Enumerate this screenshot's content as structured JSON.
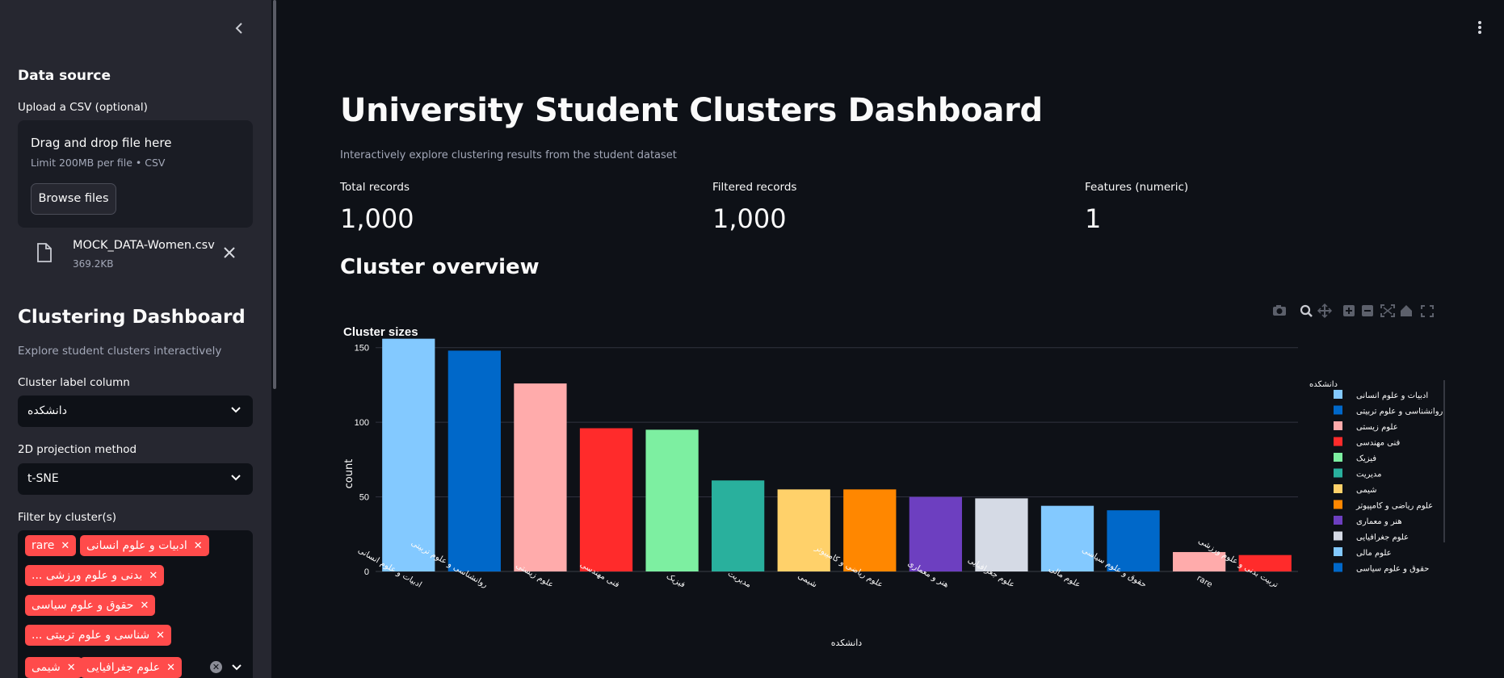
{
  "sidebar": {
    "data_source_heading": "Data source",
    "upload_label": "Upload a CSV (optional)",
    "dropzone": {
      "title": "Drag and drop file here",
      "limit": "Limit 200MB per file • CSV",
      "browse_label": "Browse files"
    },
    "file": {
      "name": "MOCK_DATA-Women.csv",
      "size": "369.2KB"
    },
    "dashboard_heading": "Clustering Dashboard",
    "dashboard_caption": "Explore student clusters interactively",
    "cluster_label_column": {
      "label": "Cluster label column",
      "value": "دانشکده"
    },
    "projection": {
      "label": "2D projection method",
      "value": "t-SNE"
    },
    "filter": {
      "label": "Filter by cluster(s)",
      "tags": [
        "rare",
        "ادبیات و علوم انسانی",
        "... بدنی و علوم ورزشی",
        "حقوق و علوم سیاسی",
        "... شناسی و علوم تربیتی",
        "شیمی",
        "علوم جغرافیایی"
      ]
    }
  },
  "main": {
    "title": "University Student Clusters Dashboard",
    "subtitle": "Interactively explore clustering results from the student dataset",
    "metrics": [
      {
        "label": "Total records",
        "value": "1,000"
      },
      {
        "label": "Filtered records",
        "value": "1,000"
      },
      {
        "label": "Features (numeric)",
        "value": "1"
      }
    ],
    "section_heading": "Cluster overview"
  },
  "modebar_icons": [
    "camera-icon",
    "zoom-icon",
    "pan-icon",
    "zoom-in-icon",
    "zoom-out-icon",
    "autoscale-icon",
    "home-icon",
    "fullscreen-icon"
  ],
  "chart_data": {
    "type": "bar",
    "title": "Cluster sizes",
    "xlabel": "دانشکده",
    "ylabel": "count",
    "ylim": [
      0,
      165
    ],
    "yticks": [
      0,
      50,
      100,
      150
    ],
    "grid": true,
    "legend_title": "دانشکده",
    "legend_position": "right",
    "categories": [
      "ادبیات و علوم انسانی",
      "روانشناسی و علوم تربیتی",
      "علوم زیستی",
      "فنی مهندسی",
      "فیزیک",
      "مدیریت",
      "شیمی",
      "علوم ریاضی و کامپیوتر",
      "هنر و معماری",
      "علوم جغرافیایی",
      "علوم مالی",
      "حقوق و علوم سیاسی",
      "rare",
      "تربیت بدنی و علوم ورزشی"
    ],
    "values": [
      156,
      148,
      126,
      96,
      95,
      61,
      55,
      55,
      50,
      49,
      44,
      41,
      13,
      11
    ],
    "colors": [
      "#83c9ff",
      "#0068c9",
      "#ffabab",
      "#ff2b2b",
      "#7defa1",
      "#29b09d",
      "#ffd16a",
      "#ff8700",
      "#6d3fc0",
      "#d5dae5",
      "#83c9ff",
      "#0068c9",
      "#ffabab",
      "#ff2b2b"
    ],
    "legend_items": [
      "ادبیات و علوم انسانی",
      "روانشناسی و علوم تربیتی",
      "علوم زیستی",
      "فنی مهندسی",
      "فیزیک",
      "مدیریت",
      "شیمی",
      "علوم ریاضی و کامپیوتر",
      "هنر و معماری",
      "علوم جغرافیایی",
      "علوم مالی",
      "حقوق و علوم سیاسی"
    ]
  }
}
